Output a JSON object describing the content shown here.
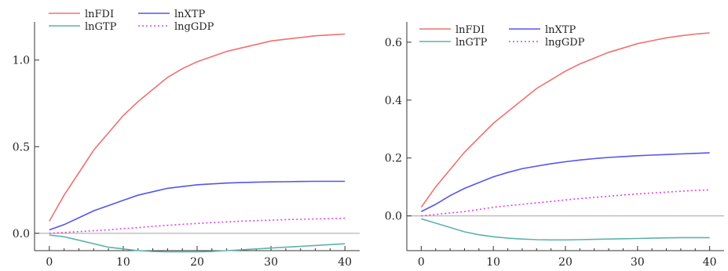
{
  "chart_data": [
    {
      "type": "line",
      "title": "",
      "xlabel": "",
      "ylabel": "",
      "xlim": [
        -2,
        42
      ],
      "ylim": [
        -0.1,
        1.22
      ],
      "xticks": [
        0,
        10,
        20,
        30,
        40
      ],
      "xtick_labels": [
        "0",
        "10",
        "20",
        "30",
        "40"
      ],
      "yticks": [
        0.0,
        0.5,
        1.0
      ],
      "ytick_labels": [
        "0.0",
        "0.5",
        "1.0"
      ],
      "grid": false,
      "legend_position": "top-left",
      "x": [
        0,
        2,
        4,
        6,
        8,
        10,
        12,
        14,
        16,
        18,
        20,
        22,
        24,
        26,
        28,
        30,
        32,
        34,
        36,
        38,
        40
      ],
      "series": [
        {
          "name": "lnFDI",
          "color": "#f07070",
          "style": "solid",
          "values": [
            0.07,
            0.22,
            0.35,
            0.48,
            0.58,
            0.68,
            0.76,
            0.83,
            0.9,
            0.95,
            0.99,
            1.02,
            1.05,
            1.07,
            1.09,
            1.11,
            1.12,
            1.13,
            1.14,
            1.145,
            1.15
          ]
        },
        {
          "name": "lnXTP",
          "color": "#5555ee",
          "style": "solid",
          "values": [
            0.02,
            0.05,
            0.09,
            0.13,
            0.16,
            0.19,
            0.22,
            0.24,
            0.26,
            0.27,
            0.28,
            0.285,
            0.29,
            0.293,
            0.295,
            0.297,
            0.298,
            0.299,
            0.3,
            0.3,
            0.3
          ]
        },
        {
          "name": "lnGTP",
          "color": "#5fb3a8",
          "style": "solid",
          "values": [
            -0.01,
            -0.02,
            -0.04,
            -0.06,
            -0.08,
            -0.09,
            -0.1,
            -0.105,
            -0.107,
            -0.107,
            -0.107,
            -0.105,
            -0.1,
            -0.095,
            -0.09,
            -0.085,
            -0.08,
            -0.075,
            -0.07,
            -0.065,
            -0.06
          ]
        },
        {
          "name": "lngGDP",
          "color": "#e040e0",
          "style": "dotted",
          "values": [
            0.0,
            0.005,
            0.01,
            0.015,
            0.02,
            0.027,
            0.033,
            0.04,
            0.046,
            0.052,
            0.057,
            0.062,
            0.066,
            0.07,
            0.073,
            0.076,
            0.079,
            0.081,
            0.083,
            0.085,
            0.087
          ]
        }
      ]
    },
    {
      "type": "line",
      "title": "",
      "xlabel": "",
      "ylabel": "",
      "xlim": [
        -2,
        42
      ],
      "ylim": [
        -0.12,
        0.67
      ],
      "xticks": [
        0,
        10,
        20,
        30,
        40
      ],
      "xtick_labels": [
        "0",
        "10",
        "20",
        "30",
        "40"
      ],
      "yticks": [
        0.0,
        0.2,
        0.4,
        0.6
      ],
      "ytick_labels": [
        "0.0",
        "0.2",
        "0.4",
        "0.6"
      ],
      "grid": false,
      "legend_position": "top-left",
      "x": [
        0,
        2,
        4,
        6,
        8,
        10,
        12,
        14,
        16,
        18,
        20,
        22,
        24,
        26,
        28,
        30,
        32,
        34,
        36,
        38,
        40
      ],
      "series": [
        {
          "name": "lnFDI",
          "color": "#f07070",
          "style": "solid",
          "values": [
            0.03,
            0.1,
            0.16,
            0.22,
            0.27,
            0.32,
            0.36,
            0.4,
            0.44,
            0.47,
            0.5,
            0.525,
            0.545,
            0.565,
            0.58,
            0.595,
            0.605,
            0.615,
            0.622,
            0.628,
            0.632
          ]
        },
        {
          "name": "lnXTP",
          "color": "#5555ee",
          "style": "solid",
          "values": [
            0.015,
            0.04,
            0.07,
            0.095,
            0.115,
            0.135,
            0.15,
            0.163,
            0.172,
            0.18,
            0.187,
            0.193,
            0.198,
            0.202,
            0.205,
            0.208,
            0.21,
            0.212,
            0.214,
            0.216,
            0.218
          ]
        },
        {
          "name": "lnGTP",
          "color": "#5fb3a8",
          "style": "solid",
          "values": [
            -0.01,
            -0.025,
            -0.04,
            -0.055,
            -0.065,
            -0.072,
            -0.077,
            -0.08,
            -0.082,
            -0.083,
            -0.083,
            -0.082,
            -0.081,
            -0.08,
            -0.079,
            -0.078,
            -0.077,
            -0.076,
            -0.075,
            -0.075,
            -0.075
          ]
        },
        {
          "name": "lngGDP",
          "color": "#e040e0",
          "style": "dotted",
          "values": [
            0.0,
            0.005,
            0.01,
            0.015,
            0.022,
            0.03,
            0.035,
            0.04,
            0.045,
            0.05,
            0.055,
            0.06,
            0.064,
            0.068,
            0.072,
            0.076,
            0.079,
            0.082,
            0.085,
            0.088,
            0.09
          ]
        }
      ]
    }
  ]
}
